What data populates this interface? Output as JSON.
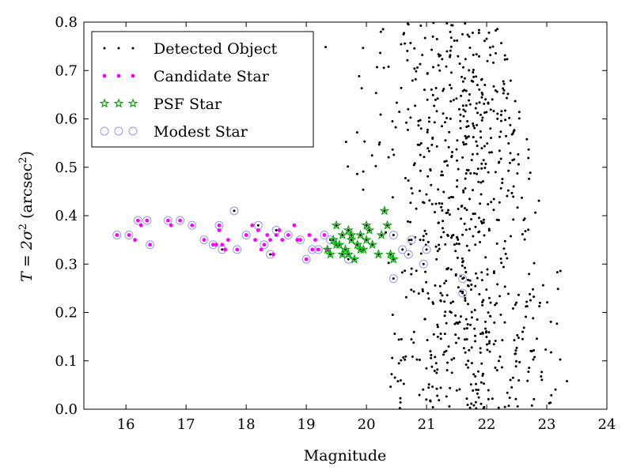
{
  "chart_data": {
    "type": "scatter",
    "xlabel": "Magnitude",
    "ylabel_parts": {
      "base": "T = 2σ",
      "sup": "2",
      "paren": " (arcsec",
      "sup2": "2",
      "close": ")"
    },
    "xlim": [
      15.3,
      24.0
    ],
    "ylim": [
      0.0,
      0.8
    ],
    "xticks": [
      16,
      17,
      18,
      19,
      20,
      21,
      22,
      23,
      24
    ],
    "yticks": [
      0.0,
      0.1,
      0.2,
      0.3,
      0.4,
      0.5,
      0.6,
      0.7,
      0.8
    ],
    "legend": {
      "position": "upper-left",
      "entries": [
        {
          "name": "Detected Object",
          "marker": "dot"
        },
        {
          "name": "Candidate Star",
          "marker": "magenta-dot"
        },
        {
          "name": "PSF Star",
          "marker": "green-star"
        },
        {
          "name": "Modest Star",
          "marker": "blue-ring"
        }
      ]
    },
    "colors": {
      "detected": "#000000",
      "candidate": "#ff00ff",
      "psf": "#00aa00",
      "modest": "#9999ee"
    },
    "series": [
      {
        "name": "Modest Star",
        "points": [
          [
            15.85,
            0.36
          ],
          [
            16.05,
            0.36
          ],
          [
            16.2,
            0.39
          ],
          [
            16.35,
            0.39
          ],
          [
            16.4,
            0.34
          ],
          [
            16.7,
            0.39
          ],
          [
            16.9,
            0.39
          ],
          [
            17.1,
            0.38
          ],
          [
            17.3,
            0.35
          ],
          [
            17.45,
            0.34
          ],
          [
            17.55,
            0.38
          ],
          [
            17.6,
            0.33
          ],
          [
            17.8,
            0.41
          ],
          [
            17.85,
            0.33
          ],
          [
            18.0,
            0.36
          ],
          [
            18.2,
            0.38
          ],
          [
            18.3,
            0.34
          ],
          [
            18.4,
            0.32
          ],
          [
            18.5,
            0.37
          ],
          [
            18.7,
            0.36
          ],
          [
            18.9,
            0.35
          ],
          [
            19.0,
            0.31
          ],
          [
            19.1,
            0.33
          ],
          [
            19.2,
            0.33
          ],
          [
            19.3,
            0.36
          ],
          [
            19.4,
            0.35
          ],
          [
            19.7,
            0.31
          ],
          [
            20.45,
            0.36
          ],
          [
            20.45,
            0.27
          ],
          [
            20.6,
            0.33
          ],
          [
            20.7,
            0.32
          ],
          [
            20.75,
            0.35
          ],
          [
            20.95,
            0.3
          ],
          [
            21.0,
            0.33
          ],
          [
            21.6,
            0.27
          ],
          [
            21.6,
            0.24
          ]
        ]
      },
      {
        "name": "Candidate Star",
        "points": [
          [
            15.85,
            0.36
          ],
          [
            16.05,
            0.36
          ],
          [
            16.15,
            0.35
          ],
          [
            16.2,
            0.39
          ],
          [
            16.25,
            0.38
          ],
          [
            16.35,
            0.39
          ],
          [
            16.4,
            0.34
          ],
          [
            16.7,
            0.39
          ],
          [
            16.75,
            0.38
          ],
          [
            16.9,
            0.39
          ],
          [
            17.1,
            0.38
          ],
          [
            17.3,
            0.35
          ],
          [
            17.45,
            0.34
          ],
          [
            17.5,
            0.34
          ],
          [
            17.55,
            0.38
          ],
          [
            17.55,
            0.37
          ],
          [
            17.6,
            0.34
          ],
          [
            17.65,
            0.33
          ],
          [
            17.7,
            0.35
          ],
          [
            17.85,
            0.33
          ],
          [
            18.0,
            0.36
          ],
          [
            18.1,
            0.38
          ],
          [
            18.15,
            0.35
          ],
          [
            18.2,
            0.37
          ],
          [
            18.25,
            0.33
          ],
          [
            18.3,
            0.34
          ],
          [
            18.35,
            0.36
          ],
          [
            18.4,
            0.35
          ],
          [
            18.45,
            0.32
          ],
          [
            18.5,
            0.36
          ],
          [
            18.55,
            0.37
          ],
          [
            18.6,
            0.35
          ],
          [
            18.7,
            0.36
          ],
          [
            18.8,
            0.38
          ],
          [
            18.85,
            0.35
          ],
          [
            18.9,
            0.35
          ],
          [
            19.0,
            0.31
          ],
          [
            19.05,
            0.36
          ],
          [
            19.1,
            0.33
          ],
          [
            19.15,
            0.35
          ],
          [
            19.2,
            0.33
          ],
          [
            19.3,
            0.36
          ],
          [
            19.35,
            0.33
          ]
        ]
      },
      {
        "name": "PSF Star",
        "points": [
          [
            19.35,
            0.33
          ],
          [
            19.4,
            0.32
          ],
          [
            19.45,
            0.35
          ],
          [
            19.5,
            0.38
          ],
          [
            19.55,
            0.34
          ],
          [
            19.6,
            0.36
          ],
          [
            19.65,
            0.33
          ],
          [
            19.7,
            0.37
          ],
          [
            19.7,
            0.32
          ],
          [
            19.75,
            0.35
          ],
          [
            19.8,
            0.31
          ],
          [
            19.85,
            0.34
          ],
          [
            19.9,
            0.36
          ],
          [
            19.95,
            0.33
          ],
          [
            20.0,
            0.35
          ],
          [
            20.05,
            0.37
          ],
          [
            20.1,
            0.34
          ],
          [
            20.2,
            0.32
          ],
          [
            20.25,
            0.36
          ],
          [
            20.3,
            0.41
          ],
          [
            20.35,
            0.38
          ],
          [
            20.4,
            0.32
          ],
          [
            20.45,
            0.31
          ],
          [
            19.5,
            0.34
          ],
          [
            19.6,
            0.32
          ],
          [
            19.75,
            0.36
          ],
          [
            19.9,
            0.33
          ],
          [
            20.0,
            0.38
          ]
        ]
      },
      {
        "name": "Detected Object",
        "generator": {
          "seed": 42,
          "count": 780,
          "xcenter": 21.6,
          "xspread": 0.65,
          "ymin": 0.0,
          "ymax": 0.8
        }
      }
    ]
  }
}
